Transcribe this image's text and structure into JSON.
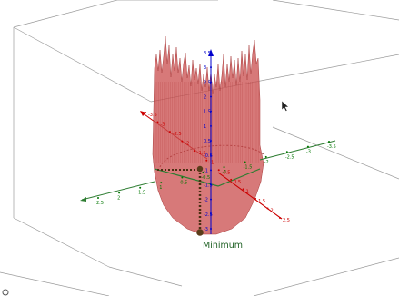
{
  "graphics_view_3d": {
    "label_minimum": "Minimum",
    "plane_label": "",
    "axes": {
      "x": {
        "color": "#cc0000",
        "ticks": [
          "2.5",
          "2",
          "1.5",
          "1",
          "0.5",
          "-0.5",
          "-1",
          "-1.5",
          "-2",
          "-2.5",
          "-3",
          "-3.5"
        ]
      },
      "y": {
        "color": "#007700",
        "ticks": [
          "3.5",
          "3",
          "2.5",
          "2",
          "1.5",
          "1",
          "0.5",
          "-0.5",
          "-1",
          "-1.5",
          "-2",
          "-2.5",
          "-3",
          "-3.5"
        ]
      },
      "z": {
        "color": "#0000cc",
        "ticks": [
          "3.5",
          "3",
          "2.5",
          "2",
          "1.5",
          "1",
          "0.5",
          "-0.5",
          "-1",
          "-1.5",
          "-2",
          "-2.5",
          "-3"
        ]
      }
    },
    "surface_color": "#c94c4c",
    "minimum_point_color": "#5a3d1a",
    "axes_plane_color": "#2e7d32",
    "cursor_icon": "mouse-pointer-icon"
  }
}
